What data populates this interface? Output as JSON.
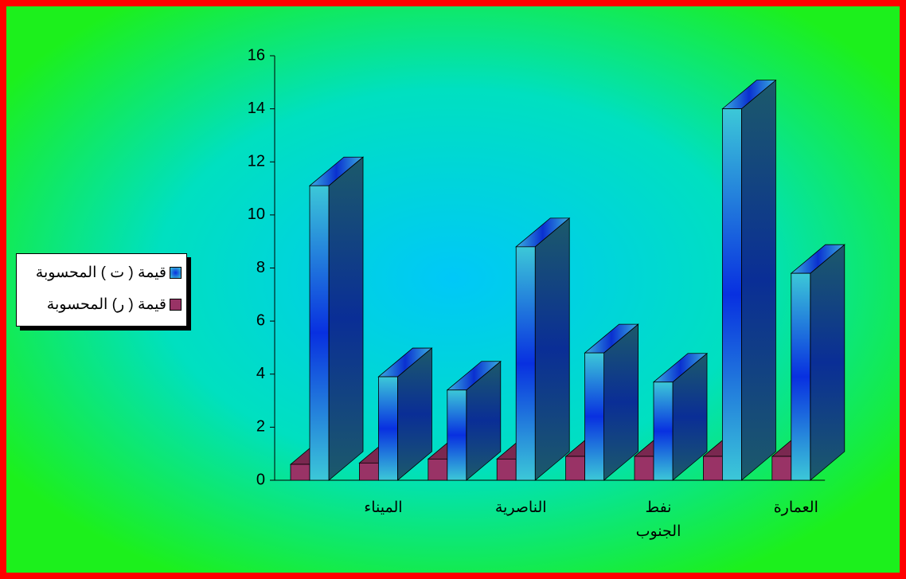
{
  "chart_data": {
    "type": "bar3d",
    "categories": [
      null,
      "الميناء",
      null,
      "الناصرية",
      null,
      "نفط الجنوب",
      null,
      "العمارة"
    ],
    "series": [
      {
        "name": "قيمة ( ت ) المحسوبة",
        "color": "#1f4fd8",
        "values": [
          11.1,
          3.9,
          3.4,
          8.8,
          4.8,
          3.7,
          14.0,
          7.8
        ]
      },
      {
        "name": "قيمة ( ر) المحسوبة",
        "color": "#993366",
        "values": [
          0.6,
          0.65,
          0.8,
          0.8,
          0.9,
          0.9,
          0.9,
          0.9
        ]
      }
    ],
    "ylim": [
      0,
      16
    ],
    "yticks": [
      0,
      2,
      4,
      6,
      8,
      10,
      12,
      14,
      16
    ],
    "legend": "left"
  }
}
